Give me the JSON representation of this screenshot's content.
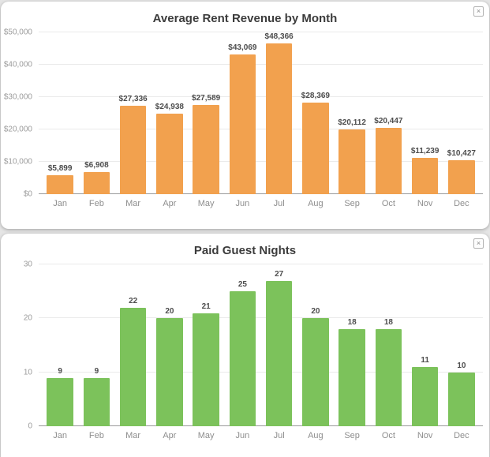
{
  "ui": {
    "close_glyph": "×",
    "card_background": "#ffffff",
    "page_background": "#e5e5e5"
  },
  "chart_data": [
    {
      "type": "bar",
      "title": "Average Rent Revenue by Month",
      "xlabel": "",
      "ylabel": "",
      "bar_color": "#F2A14E",
      "grid": true,
      "legend": false,
      "categories": [
        "Jan",
        "Feb",
        "Mar",
        "Apr",
        "May",
        "Jun",
        "Jul",
        "Aug",
        "Sep",
        "Oct",
        "Nov",
        "Dec"
      ],
      "values": [
        5899,
        6908,
        27336,
        24938,
        27589,
        43069,
        48366,
        28369,
        20112,
        20447,
        11239,
        10427
      ],
      "value_labels": [
        "$5,899",
        "$6,908",
        "$27,336",
        "$24,938",
        "$27,589",
        "$43,069",
        "$48,366",
        "$28,369",
        "$20,112",
        "$20,447",
        "$11,239",
        "$10,427"
      ],
      "ylim": [
        0,
        50000
      ],
      "yticks": [
        {
          "value": 0,
          "label": "$0"
        },
        {
          "value": 10000,
          "label": "$10,000"
        },
        {
          "value": 20000,
          "label": "$20,000"
        },
        {
          "value": 30000,
          "label": "$30,000"
        },
        {
          "value": 40000,
          "label": "$40,000"
        },
        {
          "value": 50000,
          "label": "$50,000"
        }
      ]
    },
    {
      "type": "bar",
      "title": "Paid Guest Nights",
      "xlabel": "",
      "ylabel": "",
      "bar_color": "#7CC25B",
      "grid": true,
      "legend": false,
      "categories": [
        "Jan",
        "Feb",
        "Mar",
        "Apr",
        "May",
        "Jun",
        "Jul",
        "Aug",
        "Sep",
        "Oct",
        "Nov",
        "Dec"
      ],
      "values": [
        9,
        9,
        22,
        20,
        21,
        25,
        27,
        20,
        18,
        18,
        11,
        10
      ],
      "value_labels": [
        "9",
        "9",
        "22",
        "20",
        "21",
        "25",
        "27",
        "20",
        "18",
        "18",
        "11",
        "10"
      ],
      "ylim": [
        0,
        30
      ],
      "yticks": [
        {
          "value": 0,
          "label": "0"
        },
        {
          "value": 10,
          "label": "10"
        },
        {
          "value": 20,
          "label": "20"
        },
        {
          "value": 30,
          "label": "30"
        }
      ]
    }
  ]
}
